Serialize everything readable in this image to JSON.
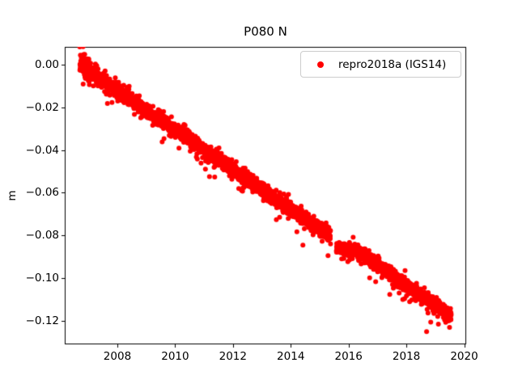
{
  "chart_data": {
    "type": "scatter",
    "title": "P080 N",
    "xlabel": "",
    "ylabel": "m",
    "grid": false,
    "xlim": [
      2006.18,
      2020.07
    ],
    "ylim": [
      -0.131,
      0.0083
    ],
    "xticks": [
      {
        "value": 2008,
        "label": "2008"
      },
      {
        "value": 2010,
        "label": "2010"
      },
      {
        "value": 2012,
        "label": "2012"
      },
      {
        "value": 2014,
        "label": "2014"
      },
      {
        "value": 2016,
        "label": "2016"
      },
      {
        "value": 2018,
        "label": "2018"
      },
      {
        "value": 2020,
        "label": "2020"
      }
    ],
    "yticks": [
      {
        "value": 0.0,
        "label": "0.00"
      },
      {
        "value": -0.02,
        "label": "−0.02"
      },
      {
        "value": -0.04,
        "label": "−0.04"
      },
      {
        "value": -0.06,
        "label": "−0.06"
      },
      {
        "value": -0.08,
        "label": "−0.08"
      },
      {
        "value": -0.1,
        "label": "−0.10"
      },
      {
        "value": -0.12,
        "label": "−0.12"
      }
    ],
    "legend": {
      "position": "upper right",
      "entries": [
        {
          "label": "repro2018a (IGS14)",
          "color": "#ff0000",
          "marker": "circle"
        }
      ]
    },
    "series": [
      {
        "name": "repro2018a (IGS14)",
        "color": "#ff0000",
        "marker": "dot",
        "marker_diameter_px": 6,
        "trend_slope_m_per_yr": -0.0092,
        "model": {
          "t_start": 2006.7,
          "t_end": 2019.55,
          "n_points": 3400,
          "trend_anchors": [
            [
              2006.7,
              0.0
            ],
            [
              2015.38,
              -0.0805
            ],
            [
              2015.58,
              -0.0853
            ],
            [
              2016.35,
              -0.0878
            ],
            [
              2019.55,
              -0.118
            ]
          ],
          "gaps": [
            [
              2015.38,
              2015.58
            ]
          ],
          "noise_std": 0.0016,
          "early_noise": {
            "until": 2007.05,
            "std": 0.003
          },
          "outlier_rate_low": 0.02,
          "outlier_low_range": [
            0.0025,
            0.0095
          ],
          "outlier_rate_high": 0.005,
          "outlier_high_range": [
            0.002,
            0.0045
          ],
          "explicit_outliers": [
            [
              2018.7,
              -0.125
            ]
          ],
          "seed": 7
        }
      }
    ]
  }
}
